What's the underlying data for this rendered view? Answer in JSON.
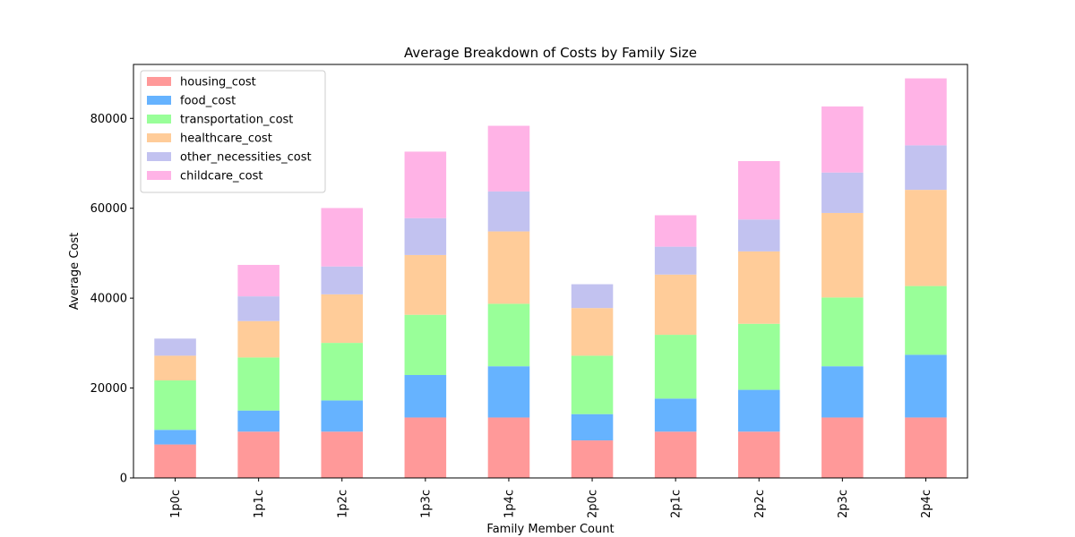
{
  "chart_data": {
    "type": "bar",
    "stacked": true,
    "title": "Average Breakdown of Costs by Family Size",
    "xlabel": "Family Member Count",
    "ylabel": "Average Cost",
    "ylim": [
      0,
      92000
    ],
    "yticks": [
      0,
      20000,
      40000,
      60000,
      80000
    ],
    "grid": false,
    "legend_position": "top-left",
    "categories": [
      "1p0c",
      "1p1c",
      "1p2c",
      "1p3c",
      "1p4c",
      "2p0c",
      "2p1c",
      "2p2c",
      "2p3c",
      "2p4c"
    ],
    "series": [
      {
        "name": "housing_cost",
        "color": "#ff9999",
        "values": [
          7450,
          10300,
          10300,
          13450,
          13450,
          8350,
          10300,
          10300,
          13450,
          13450
        ]
      },
      {
        "name": "food_cost",
        "color": "#66b3ff",
        "values": [
          3250,
          4700,
          6950,
          9450,
          11400,
          5850,
          7350,
          9300,
          11400,
          13950
        ]
      },
      {
        "name": "transportation_cost",
        "color": "#99ff99",
        "values": [
          11000,
          11800,
          12800,
          13400,
          13900,
          13000,
          14200,
          14700,
          15300,
          15300
        ]
      },
      {
        "name": "healthcare_cost",
        "color": "#ffcc99",
        "values": [
          5500,
          8100,
          10800,
          13300,
          16100,
          10600,
          13400,
          16100,
          18800,
          21400
        ]
      },
      {
        "name": "other_necessities_cost",
        "color": "#c2c2f0",
        "values": [
          3800,
          5500,
          6200,
          8200,
          8900,
          5300,
          6200,
          7100,
          9000,
          9900
        ]
      },
      {
        "name": "childcare_cost",
        "color": "#ffb3e6",
        "values": [
          0,
          7000,
          13000,
          14800,
          14600,
          0,
          7000,
          13000,
          14700,
          14900
        ]
      }
    ]
  }
}
